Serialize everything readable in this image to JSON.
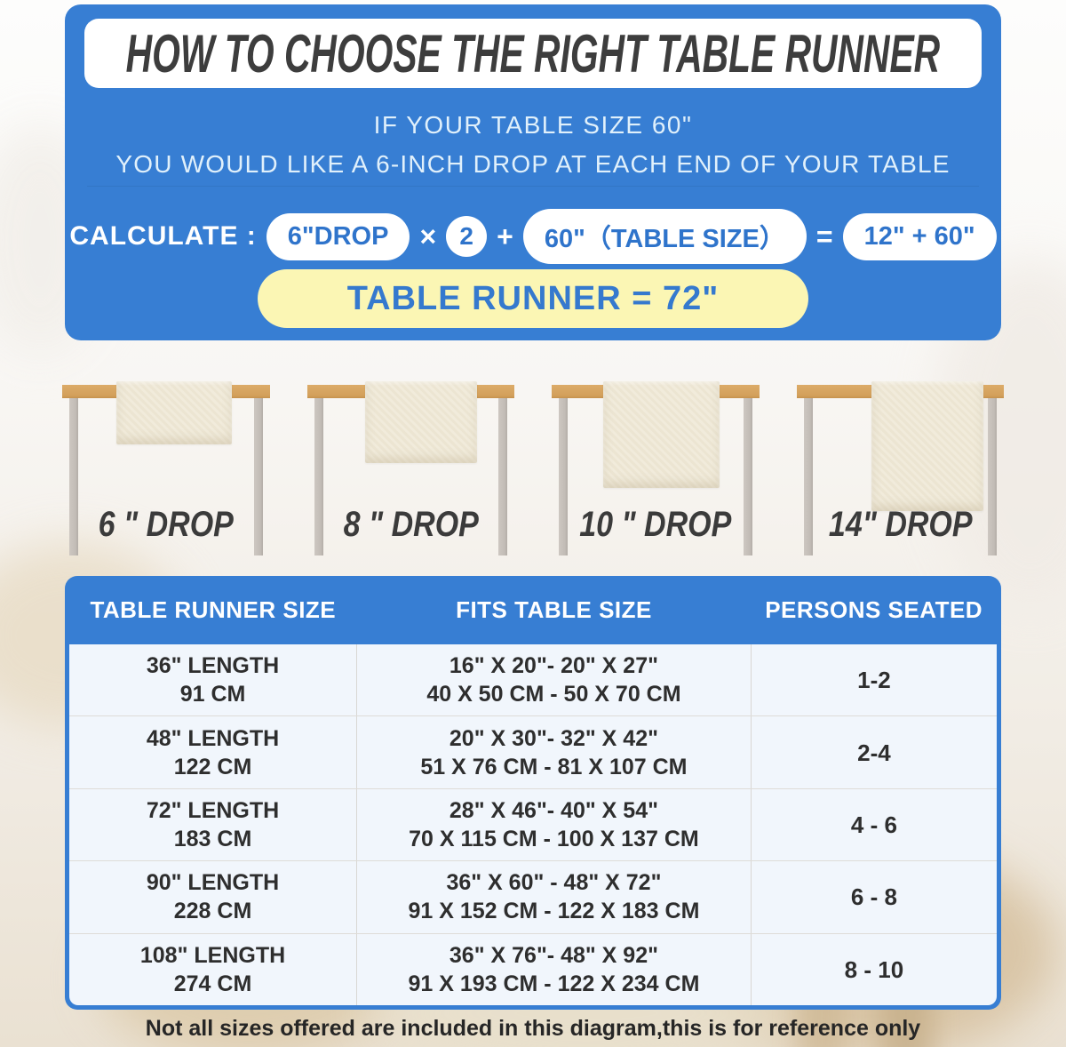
{
  "colors": {
    "panel_blue": "#377ed3",
    "pill_text_blue": "#2f74cb",
    "accent_yellow": "#fbf6b4",
    "tabletop_tan": "#d3a05b",
    "leg_gray": "#c2bcb6",
    "runner_cream": "#f1ebdb",
    "title_dark": "#3d3d3d"
  },
  "header": {
    "title": "HOW TO CHOOSE THE RIGHT TABLE RUNNER",
    "subtitle_line1": "IF YOUR TABLE SIZE 60\"",
    "subtitle_line2": "YOU WOULD LIKE A 6-INCH DROP AT EACH END OF YOUR TABLE"
  },
  "calculation": {
    "label": "CALCULATE :",
    "drop_value": "6\"DROP",
    "times_sign": "×",
    "multiplier": "2",
    "plus_sign": "+",
    "table_size_value": "60\"（TABLE SIZE）",
    "equals_sign": "=",
    "sum_value": "12\" + 60\"",
    "result": "TABLE RUNNER = 72\""
  },
  "drop_examples": [
    {
      "label": "6 \" DROP"
    },
    {
      "label": "8 \" DROP"
    },
    {
      "label": "10 \" DROP"
    },
    {
      "label": "14\" DROP"
    }
  ],
  "size_table": {
    "headers": [
      "TABLE RUNNER SIZE",
      "FITS TABLE SIZE",
      "PERSONS SEATED"
    ],
    "rows": [
      {
        "runner_in": "36\" LENGTH",
        "runner_cm": "91 CM",
        "fits_in": "16\" X 20\"- 20\" X 27\"",
        "fits_cm": "40 X 50 CM - 50 X 70 CM",
        "persons": "1-2"
      },
      {
        "runner_in": "48\" LENGTH",
        "runner_cm": "122 CM",
        "fits_in": "20\" X 30\"- 32\" X 42\"",
        "fits_cm": "51 X 76 CM - 81 X 107 CM",
        "persons": "2-4"
      },
      {
        "runner_in": "72\" LENGTH",
        "runner_cm": "183 CM",
        "fits_in": "28\" X 46\"- 40\" X 54\"",
        "fits_cm": "70 X 115 CM - 100 X 137 CM",
        "persons": "4 - 6"
      },
      {
        "runner_in": "90\" LENGTH",
        "runner_cm": "228 CM",
        "fits_in": "36\" X 60\" - 48\" X 72\"",
        "fits_cm": "91 X 152 CM - 122 X 183 CM",
        "persons": "6 - 8"
      },
      {
        "runner_in": "108\" LENGTH",
        "runner_cm": "274 CM",
        "fits_in": "36\" X 76\"- 48\" X 92\"",
        "fits_cm": "91 X 193 CM - 122 X 234 CM",
        "persons": "8 - 10"
      }
    ]
  },
  "footer": {
    "note": "Not all sizes offered are included in this diagram,this is for reference only"
  }
}
